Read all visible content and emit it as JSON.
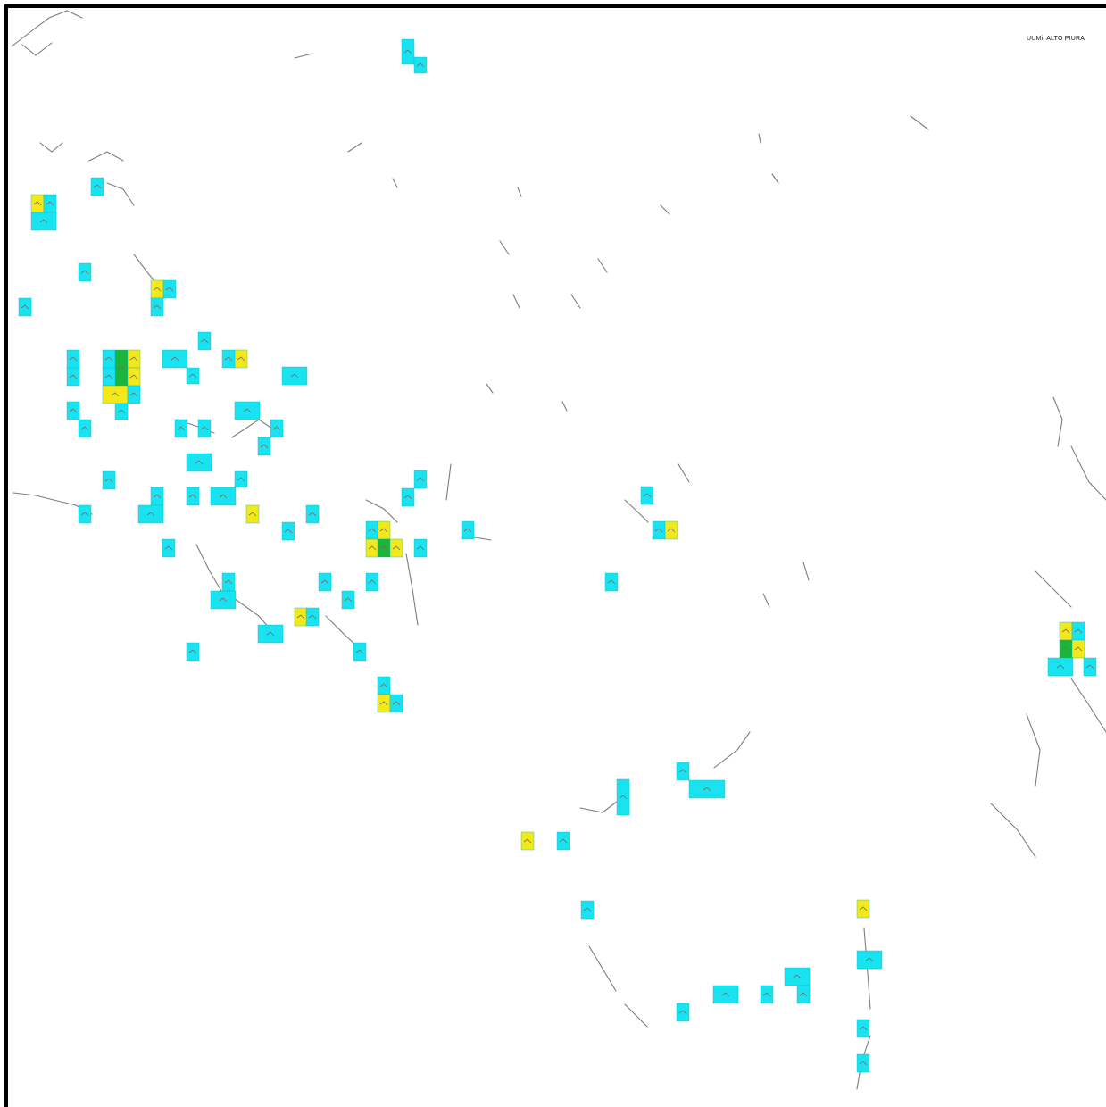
{
  "map": {
    "label": "UUMi: ALTO PIURA"
  },
  "legend_colors": {
    "cyan": "#19e3f0",
    "yellow": "#f3e81a",
    "green": "#1ab53a",
    "road": "#7d7d7d"
  }
}
